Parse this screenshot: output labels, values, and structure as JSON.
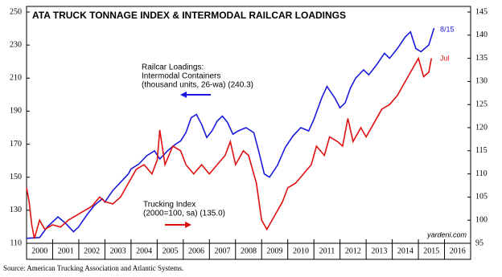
{
  "chart_data": {
    "type": "line",
    "title": "ATA TRUCK TONNAGE INDEX & INTERMODAL RAILCAR LOADINGS",
    "x_categories": [
      "2000",
      "2001",
      "2002",
      "2003",
      "2004",
      "2005",
      "2006",
      "2007",
      "2008",
      "2009",
      "2010",
      "2011",
      "2012",
      "2013",
      "2014",
      "2015",
      "2016"
    ],
    "xlim": [
      2000,
      2017
    ],
    "ylim": [
      110,
      250
    ],
    "yticks": [
      110,
      130,
      150,
      170,
      190,
      210,
      230,
      250
    ],
    "y2lim": [
      95,
      145
    ],
    "y2ticks": [
      95,
      100,
      105,
      110,
      115,
      120,
      125,
      130,
      135,
      140,
      145
    ],
    "series": [
      {
        "name": "Railcar Loadings",
        "color": "#1a1adb",
        "x": [
          2000.0,
          2000.5,
          2000.8,
          2001.0,
          2001.2,
          2001.5,
          2001.8,
          2002.0,
          2002.3,
          2002.6,
          2002.9,
          2003.0,
          2003.3,
          2003.6,
          2003.9,
          2004.0,
          2004.3,
          2004.6,
          2004.9,
          2005.1,
          2005.4,
          2005.7,
          2005.9,
          2006.1,
          2006.3,
          2006.5,
          2006.7,
          2006.9,
          2007.1,
          2007.3,
          2007.5,
          2007.7,
          2007.9,
          2008.1,
          2008.4,
          2008.7,
          2008.9,
          2009.1,
          2009.3,
          2009.6,
          2009.9,
          2010.2,
          2010.5,
          2010.8,
          2011.0,
          2011.3,
          2011.5,
          2011.8,
          2012.0,
          2012.2,
          2012.4,
          2012.6,
          2012.9,
          2013.1,
          2013.4,
          2013.7,
          2013.9,
          2014.2,
          2014.5,
          2014.7,
          2014.9,
          2015.1,
          2015.4,
          2015.6
        ],
        "values": [
          113,
          113.5,
          120,
          123,
          126,
          122,
          117,
          120,
          127,
          133,
          137,
          135,
          142,
          147,
          152,
          155,
          158,
          163,
          166,
          161,
          166,
          170,
          172,
          177,
          186,
          188,
          182,
          174,
          178,
          184,
          187,
          183,
          176,
          178,
          180,
          177,
          165,
          152,
          150,
          157,
          168,
          175,
          180,
          178,
          185,
          198,
          205,
          198,
          192,
          195,
          204,
          210,
          215,
          212,
          218,
          225,
          222,
          228,
          235,
          238,
          228,
          226,
          230,
          240.3
        ]
      },
      {
        "name": "Trucking Index",
        "color": "#e01010",
        "axis": "y2",
        "x": [
          2000.0,
          2000.1,
          2000.2,
          2000.3,
          2000.5,
          2000.7,
          2001.0,
          2001.3,
          2001.6,
          2001.9,
          2002.2,
          2002.5,
          2002.8,
          2003.0,
          2003.3,
          2003.6,
          2003.9,
          2004.2,
          2004.5,
          2004.8,
          2005.0,
          2005.1,
          2005.3,
          2005.6,
          2005.9,
          2006.1,
          2006.4,
          2006.7,
          2007.0,
          2007.3,
          2007.6,
          2007.8,
          2008.0,
          2008.3,
          2008.5,
          2008.8,
          2009.0,
          2009.2,
          2009.5,
          2009.8,
          2010.0,
          2010.3,
          2010.6,
          2010.9,
          2011.1,
          2011.4,
          2011.6,
          2011.9,
          2012.1,
          2012.3,
          2012.5,
          2012.8,
          2013.0,
          2013.3,
          2013.6,
          2013.9,
          2014.2,
          2014.5,
          2014.8,
          2015.0,
          2015.2,
          2015.4,
          2015.5
        ],
        "values": [
          107,
          104,
          99,
          96,
          100,
          98,
          99,
          98.5,
          100,
          101,
          102,
          103,
          105,
          104,
          103.5,
          105,
          108,
          111,
          112,
          110,
          113,
          119.5,
          112,
          116,
          115,
          112,
          110,
          112,
          110,
          112,
          114,
          117,
          112,
          115,
          114,
          108,
          100,
          98,
          101,
          104,
          107,
          108,
          110,
          112,
          116,
          114,
          118,
          117,
          116,
          122,
          117,
          120,
          118,
          121,
          124,
          125,
          127,
          130,
          133,
          135,
          131,
          132,
          135
        ]
      }
    ],
    "annotations": [
      {
        "lines": [
          "Railcar Loadings:",
          "Intermodal Containers",
          "(thousand units, 26-wa) (240.3)"
        ]
      },
      {
        "lines": [
          "Trucking Index",
          "(2000=100, sa) (135.0)"
        ]
      },
      {
        "lines": [
          "8/15"
        ]
      },
      {
        "lines": [
          "Jul"
        ]
      },
      {
        "lines": [
          "yardeni.com"
        ]
      }
    ],
    "source": "Source: American Trucking Association and Atlantic Systems."
  }
}
